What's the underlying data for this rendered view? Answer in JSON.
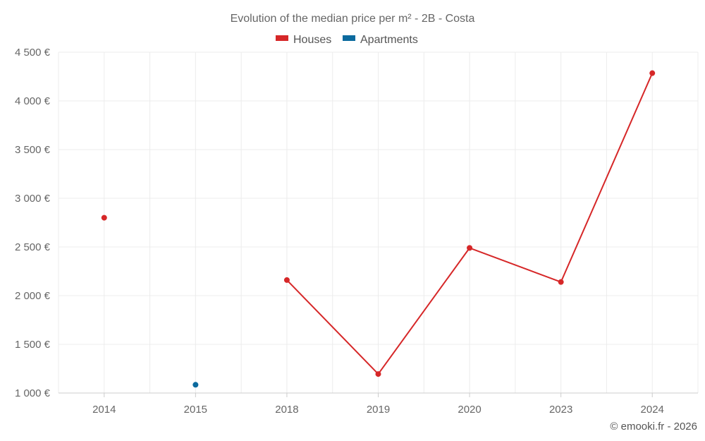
{
  "chart_data": {
    "type": "line",
    "title": "Evolution of the median price per m² - 2B - Costa",
    "categories": [
      "2014",
      "2015",
      "2018",
      "2019",
      "2020",
      "2023",
      "2024"
    ],
    "series": [
      {
        "name": "Houses",
        "color": "#d62728",
        "values": [
          2800,
          null,
          2160,
          1195,
          2490,
          2140,
          4285
        ]
      },
      {
        "name": "Apartments",
        "color": "#0b6a9e",
        "values": [
          null,
          1085,
          null,
          null,
          null,
          null,
          null
        ]
      }
    ],
    "ylim": [
      1000,
      4500
    ],
    "yticks": [
      1000,
      1500,
      2000,
      2500,
      3000,
      3500,
      4000,
      4500
    ],
    "ytick_labels": [
      "1 000 €",
      "1 500 €",
      "2 000 €",
      "2 500 €",
      "3 000 €",
      "3 500 €",
      "4 000 €",
      "4 500 €"
    ],
    "xlabel": "",
    "ylabel": "",
    "grid": true,
    "legend": "top-center"
  },
  "credit": "© emooki.fr - 2026"
}
